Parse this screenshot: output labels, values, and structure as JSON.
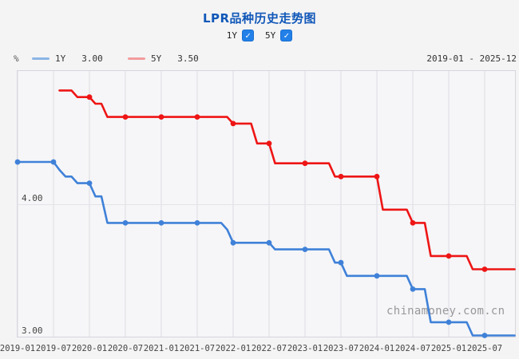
{
  "header": {
    "title": "LPR品种历史走势图",
    "controls": [
      {
        "label": "1Y",
        "checked": true
      },
      {
        "label": "5Y",
        "checked": true
      }
    ]
  },
  "legend": {
    "unit": "%",
    "items": [
      {
        "name": "1Y",
        "value": "3.00"
      },
      {
        "name": "5Y",
        "value": "3.50"
      }
    ],
    "date_range": "2019-01 - 2025-12"
  },
  "watermark": "chinamoney.com.cn",
  "chart_data": {
    "type": "line",
    "title": "LPR品种历史走势图",
    "unit": "%",
    "ylim": [
      3.0,
      5.0
    ],
    "y_ticks": [
      {
        "label": "3.00",
        "value": 3.0
      },
      {
        "label": "4.00",
        "value": 4.0
      }
    ],
    "x_start": "2019-01",
    "x_end": "2025-12",
    "x_ticks": [
      "2019-01",
      "2019-07",
      "2020-01",
      "2020-07",
      "2021-01",
      "2021-07",
      "2022-01",
      "2022-07",
      "2023-01",
      "2023-07",
      "2024-01",
      "2024-07",
      "2025-01",
      "2025-07"
    ],
    "grid": true,
    "legend_position": "top-left",
    "marker_interval_months": 6,
    "series": [
      {
        "name": "1Y",
        "current": "3.00",
        "color": "#3f81d8",
        "legend_color": "#8cb6e6",
        "changes": [
          [
            "2019-01",
            4.31
          ],
          [
            "2019-08",
            4.25
          ],
          [
            "2019-09",
            4.2
          ],
          [
            "2019-11",
            4.15
          ],
          [
            "2020-02",
            4.05
          ],
          [
            "2020-04",
            3.85
          ],
          [
            "2021-12",
            3.8
          ],
          [
            "2022-01",
            3.7
          ],
          [
            "2022-08",
            3.65
          ],
          [
            "2023-06",
            3.55
          ],
          [
            "2023-08",
            3.45
          ],
          [
            "2024-07",
            3.35
          ],
          [
            "2024-10",
            3.1
          ],
          [
            "2025-05",
            3.0
          ]
        ]
      },
      {
        "name": "5Y",
        "current": "3.50",
        "color": "#ee1515",
        "legend_color": "#f39c9c",
        "changes": [
          [
            "2019-08",
            4.85
          ],
          [
            "2019-11",
            4.8
          ],
          [
            "2020-02",
            4.75
          ],
          [
            "2020-04",
            4.65
          ],
          [
            "2022-01",
            4.6
          ],
          [
            "2022-05",
            4.45
          ],
          [
            "2022-08",
            4.3
          ],
          [
            "2023-06",
            4.2
          ],
          [
            "2024-02",
            3.95
          ],
          [
            "2024-07",
            3.85
          ],
          [
            "2024-10",
            3.6
          ],
          [
            "2025-05",
            3.5
          ]
        ]
      }
    ]
  }
}
